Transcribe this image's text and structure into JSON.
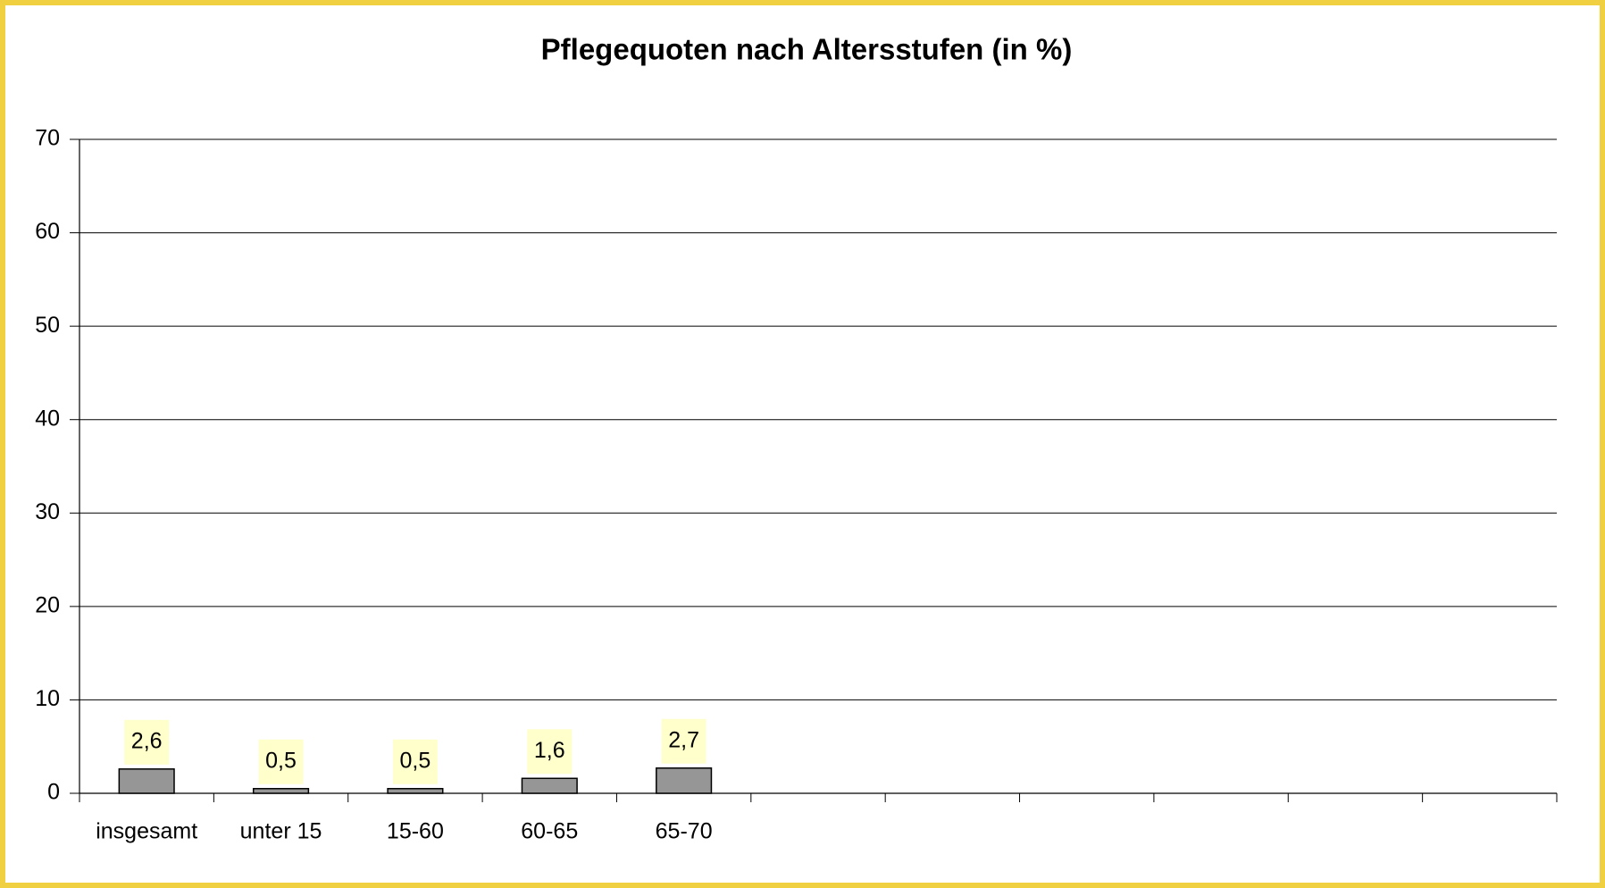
{
  "chart_data": {
    "type": "bar",
    "title": "Pflegequoten nach Altersstufen (in %)",
    "categories": [
      "insgesamt",
      "unter 15",
      "15-60",
      "60-65",
      "65-70",
      null,
      null,
      null,
      null,
      null,
      null
    ],
    "values": [
      2.6,
      0.5,
      0.5,
      1.6,
      2.7,
      null,
      null,
      null,
      null,
      null,
      null
    ],
    "value_labels": [
      "2,6",
      "0,5",
      "0,5",
      "1,6",
      "2,7",
      null,
      null,
      null,
      null,
      null,
      null
    ],
    "color": "#969696",
    "ylim": [
      0,
      70
    ],
    "yticks": [
      0,
      10,
      20,
      30,
      40,
      50,
      60,
      70
    ],
    "grid": true
  }
}
